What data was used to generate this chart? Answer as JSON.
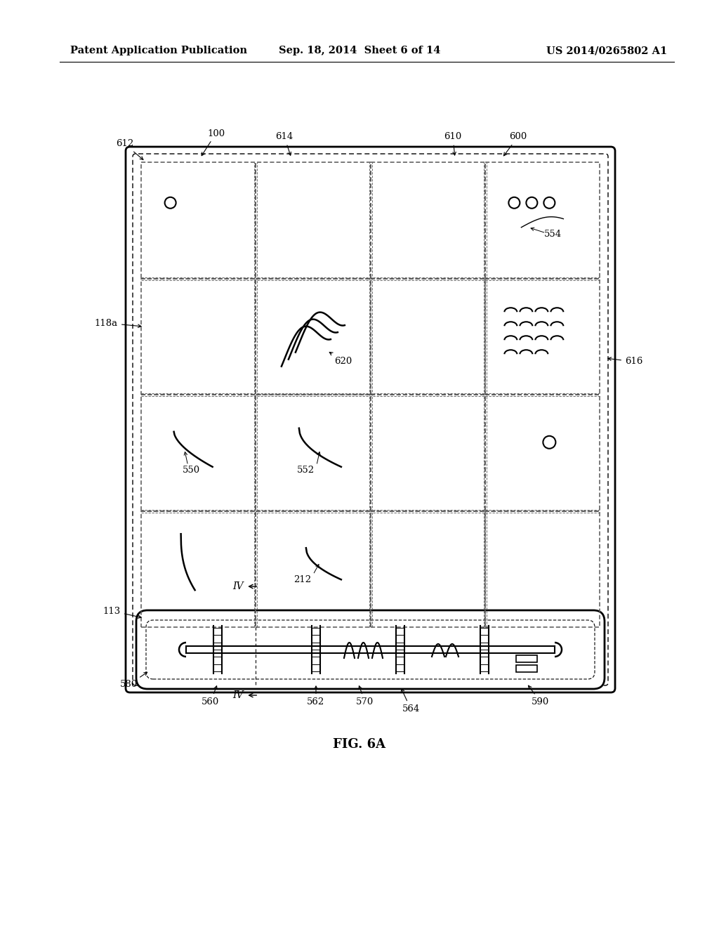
{
  "bg_color": "#ffffff",
  "line_color": "#000000",
  "header_text_left": "Patent Application Publication",
  "header_text_mid": "Sep. 18, 2014  Sheet 6 of 14",
  "header_text_right": "US 2014/0265802 A1",
  "figure_label": "FIG. 6A"
}
